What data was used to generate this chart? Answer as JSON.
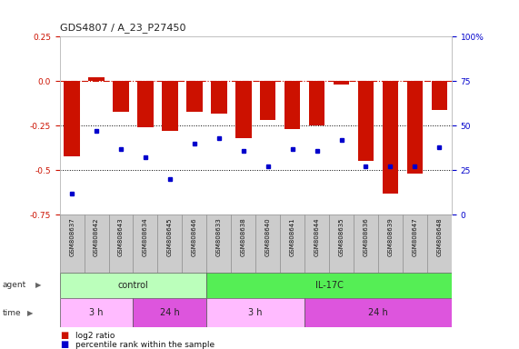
{
  "title": "GDS4807 / A_23_P27450",
  "samples": [
    "GSM808637",
    "GSM808642",
    "GSM808643",
    "GSM808634",
    "GSM808645",
    "GSM808646",
    "GSM808633",
    "GSM808638",
    "GSM808640",
    "GSM808641",
    "GSM808644",
    "GSM808635",
    "GSM808636",
    "GSM808639",
    "GSM808647",
    "GSM808648"
  ],
  "log2_ratio": [
    -0.42,
    0.02,
    -0.17,
    -0.26,
    -0.28,
    -0.17,
    -0.18,
    -0.32,
    -0.22,
    -0.27,
    -0.25,
    -0.02,
    -0.45,
    -0.63,
    -0.52,
    -0.16
  ],
  "percentile": [
    12,
    47,
    37,
    32,
    20,
    40,
    43,
    36,
    27,
    37,
    36,
    42,
    27,
    27,
    27,
    38
  ],
  "bar_color": "#cc1100",
  "dot_color": "#0000cc",
  "ylim_left": [
    -0.75,
    0.25
  ],
  "ylim_right": [
    0,
    100
  ],
  "yticks_left": [
    0.25,
    0.0,
    -0.25,
    -0.5,
    -0.75
  ],
  "yticks_right": [
    100,
    75,
    50,
    25,
    0
  ],
  "hline_zero_color": "#cc1100",
  "hline_dotted_color": "#000000",
  "agent_groups": [
    {
      "label": "control",
      "start": 0,
      "end": 6,
      "color": "#bbffbb"
    },
    {
      "label": "IL-17C",
      "start": 6,
      "end": 16,
      "color": "#55ee55"
    }
  ],
  "time_groups": [
    {
      "label": "3 h",
      "start": 0,
      "end": 3,
      "color": "#ffbbff"
    },
    {
      "label": "24 h",
      "start": 3,
      "end": 6,
      "color": "#dd55dd"
    },
    {
      "label": "3 h",
      "start": 6,
      "end": 10,
      "color": "#ffbbff"
    },
    {
      "label": "24 h",
      "start": 10,
      "end": 16,
      "color": "#dd55dd"
    }
  ],
  "legend_bar_color": "#cc1100",
  "legend_dot_color": "#0000cc",
  "legend_bar_label": "log2 ratio",
  "legend_dot_label": "percentile rank within the sample",
  "background_color": "#ffffff",
  "agent_label": "agent",
  "time_label": "time"
}
